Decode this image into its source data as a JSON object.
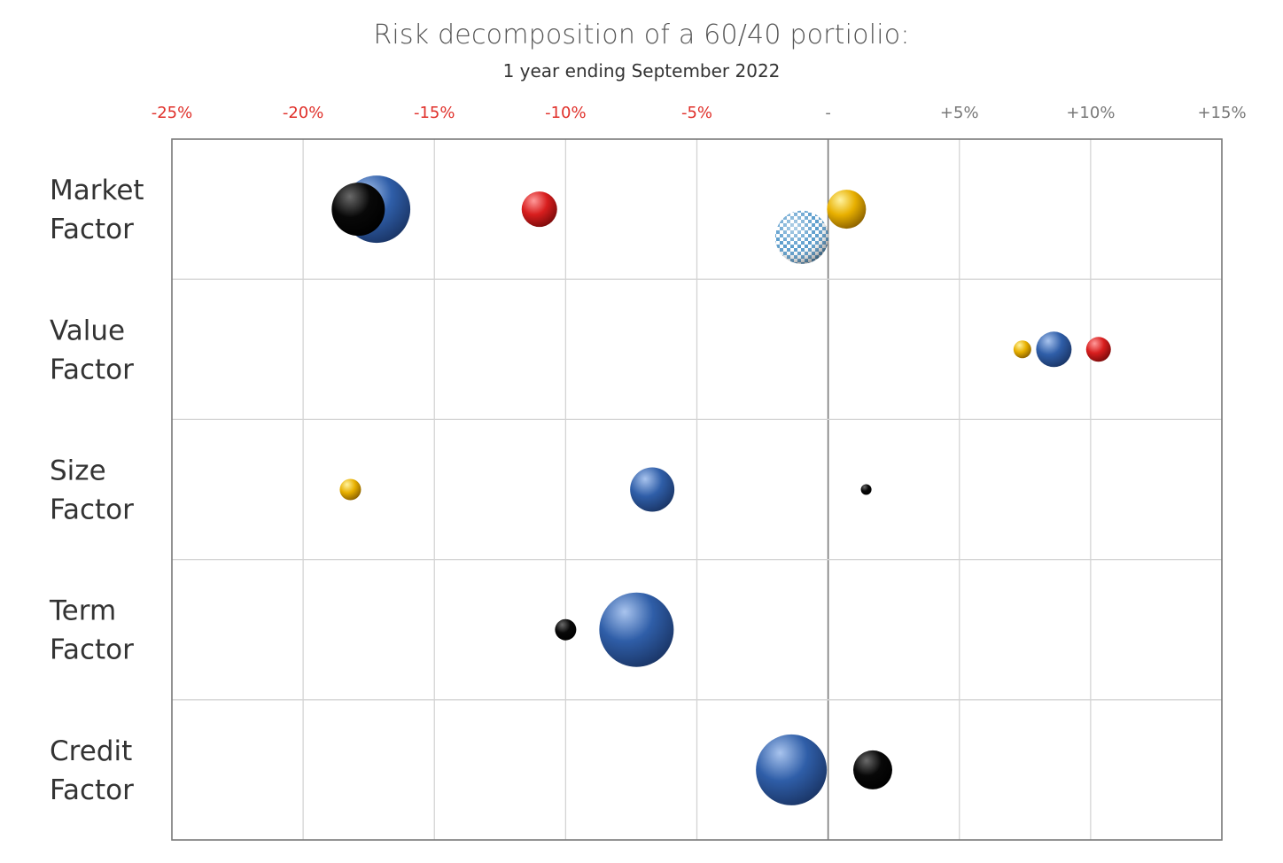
{
  "chart_data": {
    "type": "scatter",
    "title": "Risk decomposition of a 60/40 portiolio:",
    "subtitle": "1 year ending September 2022",
    "xlim": [
      -25,
      15
    ],
    "x_ticks": [
      {
        "value": -25,
        "label": "-25%",
        "color": "#e0302a"
      },
      {
        "value": -20,
        "label": "-20%",
        "color": "#e0302a"
      },
      {
        "value": -15,
        "label": "-15%",
        "color": "#e0302a"
      },
      {
        "value": -10,
        "label": "-10%",
        "color": "#e0302a"
      },
      {
        "value": -5,
        "label": "-5%",
        "color": "#e0302a"
      },
      {
        "value": 0,
        "label": "-",
        "color": "#777777"
      },
      {
        "value": 5,
        "label": "+5%",
        "color": "#777777"
      },
      {
        "value": 10,
        "label": "+10%",
        "color": "#777777"
      },
      {
        "value": 15,
        "label": "+15%",
        "color": "#777777"
      }
    ],
    "categories": [
      {
        "line1": "Market",
        "line2": "Factor"
      },
      {
        "line1": "Value",
        "line2": "Factor"
      },
      {
        "line1": "Size",
        "line2": "Factor"
      },
      {
        "line1": "Term",
        "line2": "Factor"
      },
      {
        "line1": "Credit",
        "line2": "Factor"
      }
    ],
    "grid": true,
    "points": [
      {
        "row": 0,
        "x": -17.2,
        "offset": 0,
        "size": 38,
        "color": "blue"
      },
      {
        "row": 0,
        "x": -17.9,
        "offset": 0,
        "size": 30,
        "color": "black"
      },
      {
        "row": 0,
        "x": -11.0,
        "offset": 0,
        "size": 20,
        "color": "red"
      },
      {
        "row": 0,
        "x": 0.7,
        "offset": 0,
        "size": 22,
        "color": "yellow"
      },
      {
        "row": 0,
        "x": -1.0,
        "offset": 0.2,
        "size": 30,
        "color": "checker"
      },
      {
        "row": 1,
        "x": 7.4,
        "offset": 0,
        "size": 10,
        "color": "yellow"
      },
      {
        "row": 1,
        "x": 8.6,
        "offset": 0,
        "size": 20,
        "color": "blue"
      },
      {
        "row": 1,
        "x": 10.3,
        "offset": 0,
        "size": 14,
        "color": "red"
      },
      {
        "row": 2,
        "x": -18.2,
        "offset": 0,
        "size": 12,
        "color": "yellow"
      },
      {
        "row": 2,
        "x": -6.7,
        "offset": 0,
        "size": 25,
        "color": "blue"
      },
      {
        "row": 2,
        "x": 1.45,
        "offset": 0,
        "size": 6,
        "color": "black"
      },
      {
        "row": 3,
        "x": -10.0,
        "offset": 0,
        "size": 12,
        "color": "black"
      },
      {
        "row": 3,
        "x": -7.3,
        "offset": 0,
        "size": 42,
        "color": "blue"
      },
      {
        "row": 4,
        "x": -1.4,
        "offset": 0,
        "size": 40,
        "color": "blue"
      },
      {
        "row": 4,
        "x": 1.7,
        "offset": 0,
        "size": 22,
        "color": "black"
      }
    ],
    "colors": {
      "blue": "#2f5ea8",
      "black": "#080808",
      "red": "#d81e1e",
      "yellow": "#e8b000",
      "checker_light": "#ffffff",
      "checker_dark": "#5a9ccc"
    }
  }
}
